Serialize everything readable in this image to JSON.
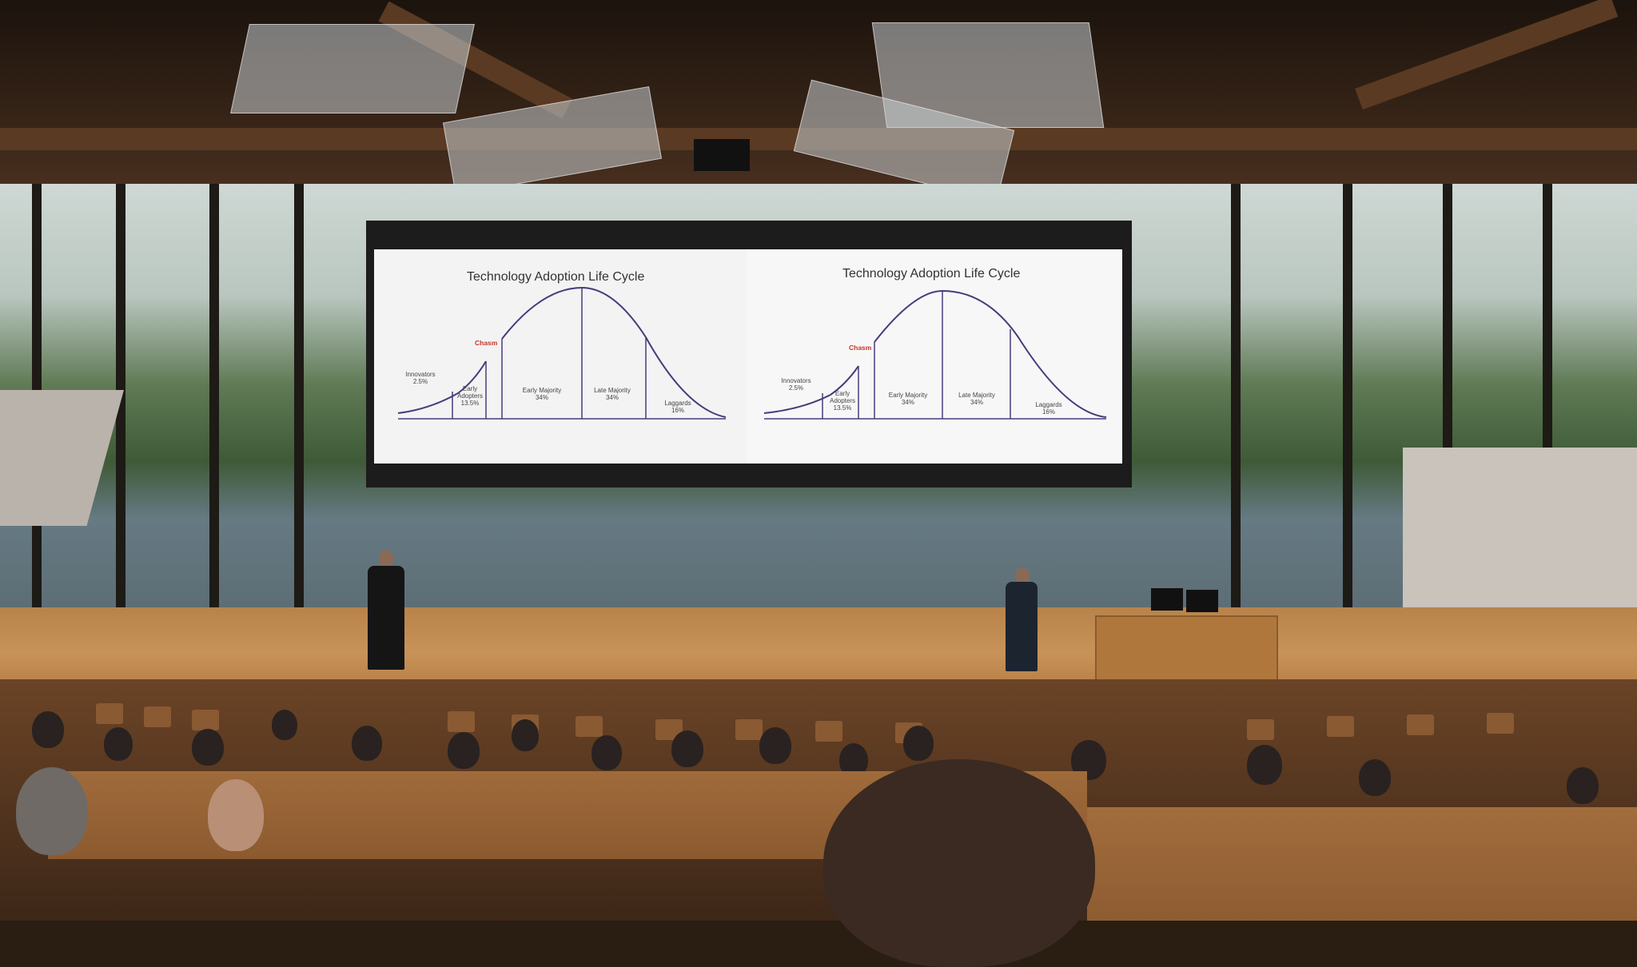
{
  "scene": {
    "description_alt": "",
    "slides": [
      {
        "title": "Technology Adoption Life Cycle",
        "chasm_label": "Chasm",
        "segments": [
          {
            "name": "Innovators",
            "pct": "2.5%"
          },
          {
            "name": "Early Adopters",
            "pct": "13.5%"
          },
          {
            "name": "Early Majority",
            "pct": "34%"
          },
          {
            "name": "Late Majority",
            "pct": "34%"
          },
          {
            "name": "Laggards",
            "pct": "16%"
          }
        ]
      },
      {
        "title": "Technology Adoption Life Cycle",
        "chasm_label": "Chasm",
        "segments": [
          {
            "name": "Innovators",
            "pct": "2.5%"
          },
          {
            "name": "Early Adopters",
            "pct": "13.5%"
          },
          {
            "name": "Early Majority",
            "pct": "34%"
          },
          {
            "name": "Late Majority",
            "pct": "34%"
          },
          {
            "name": "Laggards",
            "pct": "16%"
          }
        ]
      }
    ],
    "colors": {
      "curve": "#4a3a7a",
      "chasm": "#c0392b",
      "wood": "#c89358"
    }
  }
}
